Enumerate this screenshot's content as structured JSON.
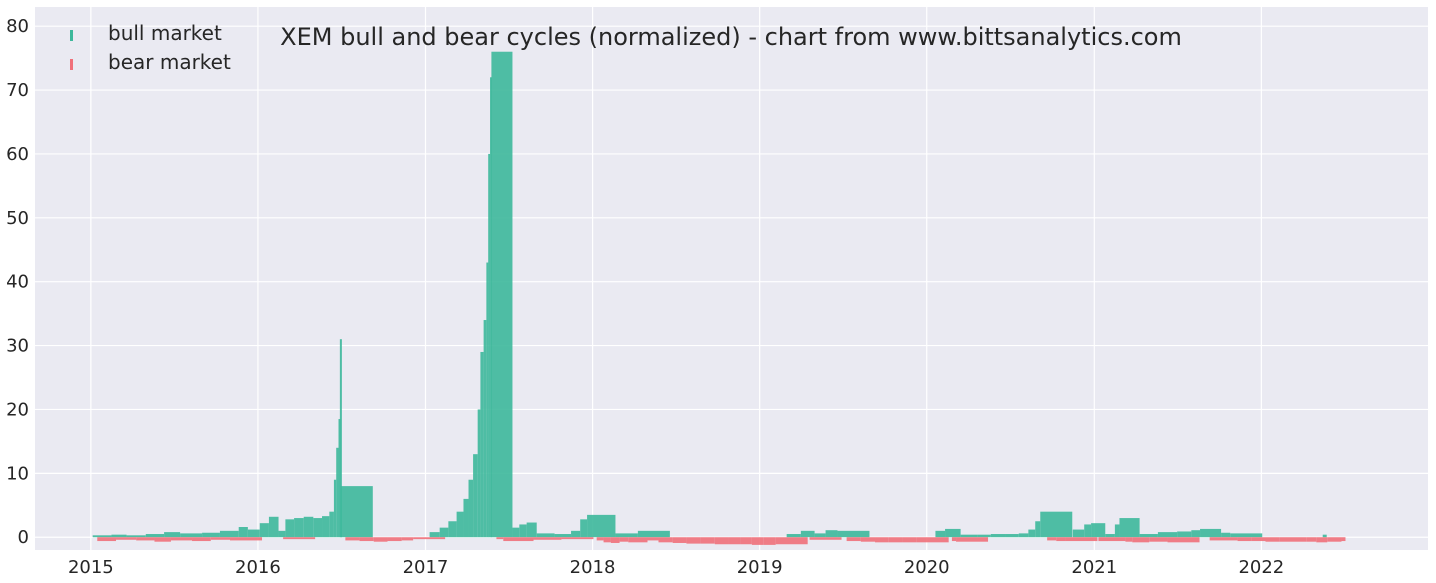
{
  "chart_data": {
    "type": "bar",
    "title": "XEM bull and bear cycles (normalized)  - chart from www.bittsanalytics.com",
    "xlabel": "",
    "ylabel": "",
    "x_range": [
      "2014-09-01",
      "2022-12-31"
    ],
    "ylim": [
      -2,
      83
    ],
    "grid": true,
    "legend_placement": "top-left",
    "x_tick_labels": [
      "2015",
      "2016",
      "2017",
      "2018",
      "2019",
      "2020",
      "2021",
      "2022"
    ],
    "x_tick_dates": [
      "2015-01-01",
      "2016-01-01",
      "2017-01-01",
      "2018-01-01",
      "2019-01-01",
      "2020-01-01",
      "2021-01-01",
      "2022-01-01"
    ],
    "y_ticks": [
      0,
      10,
      20,
      30,
      40,
      50,
      60,
      70,
      80
    ],
    "y_tick_labels": [
      "0",
      "10",
      "20",
      "30",
      "40",
      "50",
      "60",
      "70",
      "80"
    ],
    "colors": {
      "bull": "#3db89b",
      "bear": "#f0707a",
      "background": "#eaeaf2",
      "grid": "#ffffff"
    },
    "series": [
      {
        "name": "bull market",
        "key": "bull",
        "points": [
          [
            "2015-01-05",
            0.3
          ],
          [
            "2015-02-15",
            0.4
          ],
          [
            "2015-03-20",
            0.3
          ],
          [
            "2015-05-01",
            0.5
          ],
          [
            "2015-06-10",
            0.8
          ],
          [
            "2015-07-15",
            0.6
          ],
          [
            "2015-09-01",
            0.7
          ],
          [
            "2015-10-10",
            1.0
          ],
          [
            "2015-11-20",
            1.6
          ],
          [
            "2015-12-10",
            1.2
          ],
          [
            "2016-01-05",
            2.2
          ],
          [
            "2016-01-25",
            3.2
          ],
          [
            "2016-02-15",
            1.0
          ],
          [
            "2016-03-01",
            2.8
          ],
          [
            "2016-03-20",
            3.0
          ],
          [
            "2016-04-10",
            3.2
          ],
          [
            "2016-05-01",
            3.0
          ],
          [
            "2016-05-20",
            3.3
          ],
          [
            "2016-06-05",
            4.0
          ],
          [
            "2016-06-15",
            9.0
          ],
          [
            "2016-06-20",
            14.0
          ],
          [
            "2016-06-25",
            18.5
          ],
          [
            "2016-06-28",
            31.0
          ],
          [
            "2016-06-30",
            8.0
          ],
          [
            "2017-01-10",
            0.8
          ],
          [
            "2017-02-01",
            1.5
          ],
          [
            "2017-02-20",
            2.5
          ],
          [
            "2017-03-10",
            4.0
          ],
          [
            "2017-03-25",
            6.0
          ],
          [
            "2017-04-05",
            9.0
          ],
          [
            "2017-04-15",
            13.0
          ],
          [
            "2017-04-25",
            20.0
          ],
          [
            "2017-05-01",
            29.0
          ],
          [
            "2017-05-08",
            34.0
          ],
          [
            "2017-05-14",
            43.0
          ],
          [
            "2017-05-18",
            60.0
          ],
          [
            "2017-05-22",
            72.0
          ],
          [
            "2017-05-25",
            76.0
          ],
          [
            "2017-07-10",
            1.5
          ],
          [
            "2017-07-25",
            2.0
          ],
          [
            "2017-08-10",
            2.3
          ],
          [
            "2017-09-01",
            0.6
          ],
          [
            "2017-10-10",
            0.5
          ],
          [
            "2017-11-15",
            1.0
          ],
          [
            "2017-12-05",
            2.8
          ],
          [
            "2017-12-20",
            3.5
          ],
          [
            "2018-02-20",
            0.6
          ],
          [
            "2018-04-10",
            1.0
          ],
          [
            "2019-03-01",
            0.5
          ],
          [
            "2019-04-01",
            1.0
          ],
          [
            "2019-05-01",
            0.6
          ],
          [
            "2019-05-25",
            1.1
          ],
          [
            "2019-06-20",
            1.0
          ],
          [
            "2020-01-20",
            1.0
          ],
          [
            "2020-02-10",
            1.3
          ],
          [
            "2020-03-15",
            0.4
          ],
          [
            "2020-04-20",
            0.4
          ],
          [
            "2020-05-20",
            0.5
          ],
          [
            "2020-06-20",
            0.5
          ],
          [
            "2020-07-20",
            0.6
          ],
          [
            "2020-08-10",
            1.2
          ],
          [
            "2020-08-25",
            2.5
          ],
          [
            "2020-09-05",
            4.0
          ],
          [
            "2020-11-15",
            1.2
          ],
          [
            "2020-12-10",
            2.0
          ],
          [
            "2020-12-25",
            2.2
          ],
          [
            "2021-01-25",
            0.5
          ],
          [
            "2021-02-15",
            2.0
          ],
          [
            "2021-02-25",
            3.0
          ],
          [
            "2021-04-10",
            0.5
          ],
          [
            "2021-05-20",
            0.8
          ],
          [
            "2021-07-01",
            0.9
          ],
          [
            "2021-08-01",
            1.1
          ],
          [
            "2021-08-20",
            1.3
          ],
          [
            "2021-10-05",
            0.7
          ],
          [
            "2021-10-25",
            0.6
          ],
          [
            "2022-05-15",
            0.4
          ]
        ]
      },
      {
        "name": "bear market",
        "key": "bear",
        "points": [
          [
            "2015-01-15",
            -0.6
          ],
          [
            "2015-02-25",
            -0.4
          ],
          [
            "2015-04-10",
            -0.5
          ],
          [
            "2015-05-20",
            -0.7
          ],
          [
            "2015-06-25",
            -0.5
          ],
          [
            "2015-08-10",
            -0.6
          ],
          [
            "2015-09-20",
            -0.4
          ],
          [
            "2015-11-01",
            -0.5
          ],
          [
            "2016-02-25",
            -0.3
          ],
          [
            "2016-07-10",
            -0.5
          ],
          [
            "2016-08-10",
            -0.6
          ],
          [
            "2016-09-10",
            -0.7
          ],
          [
            "2016-10-10",
            -0.6
          ],
          [
            "2016-11-10",
            -0.5
          ],
          [
            "2016-12-05",
            -0.3
          ],
          [
            "2017-06-05",
            -0.3
          ],
          [
            "2017-06-20",
            -0.6
          ],
          [
            "2017-08-25",
            -0.4
          ],
          [
            "2017-10-25",
            -0.3
          ],
          [
            "2018-01-10",
            -0.5
          ],
          [
            "2018-01-25",
            -0.8
          ],
          [
            "2018-02-10",
            -0.9
          ],
          [
            "2018-03-01",
            -0.7
          ],
          [
            "2018-03-20",
            -0.8
          ],
          [
            "2018-05-01",
            -0.5
          ],
          [
            "2018-05-25",
            -0.8
          ],
          [
            "2018-06-25",
            -0.9
          ],
          [
            "2018-07-25",
            -1.0
          ],
          [
            "2018-08-25",
            -1.0
          ],
          [
            "2018-09-25",
            -1.1
          ],
          [
            "2018-10-25",
            -1.1
          ],
          [
            "2018-11-20",
            -1.1
          ],
          [
            "2018-12-15",
            -1.2
          ],
          [
            "2019-01-10",
            -1.2
          ],
          [
            "2019-02-05",
            -1.1
          ],
          [
            "2019-04-20",
            -0.4
          ],
          [
            "2019-07-10",
            -0.6
          ],
          [
            "2019-08-10",
            -0.7
          ],
          [
            "2019-09-10",
            -0.8
          ],
          [
            "2019-10-10",
            -0.8
          ],
          [
            "2019-11-10",
            -0.8
          ],
          [
            "2019-12-10",
            -0.8
          ],
          [
            "2020-02-25",
            -0.6
          ],
          [
            "2020-03-05",
            -0.7
          ],
          [
            "2020-09-20",
            -0.5
          ],
          [
            "2020-10-10",
            -0.6
          ],
          [
            "2020-10-30",
            -0.6
          ],
          [
            "2021-01-10",
            -0.6
          ],
          [
            "2021-03-10",
            -0.7
          ],
          [
            "2021-03-25",
            -0.8
          ],
          [
            "2021-05-01",
            -0.7
          ],
          [
            "2021-06-10",
            -0.8
          ],
          [
            "2021-09-10",
            -0.5
          ],
          [
            "2021-11-10",
            -0.6
          ],
          [
            "2021-12-10",
            -0.6
          ],
          [
            "2022-01-10",
            -0.7
          ],
          [
            "2022-02-10",
            -0.7
          ],
          [
            "2022-03-10",
            -0.7
          ],
          [
            "2022-04-10",
            -0.7
          ],
          [
            "2022-05-01",
            -0.8
          ],
          [
            "2022-05-25",
            -0.7
          ],
          [
            "2022-06-25",
            -0.6
          ]
        ]
      }
    ]
  }
}
